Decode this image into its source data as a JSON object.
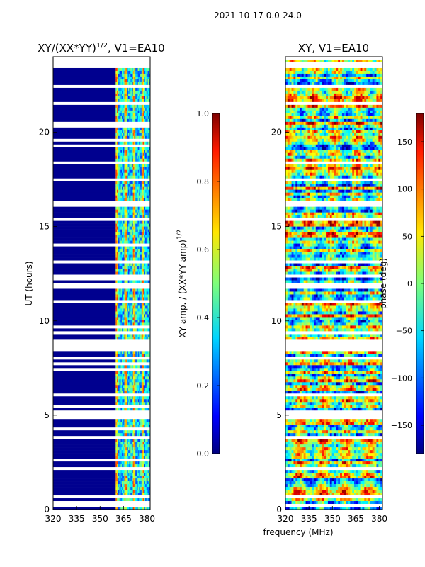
{
  "suptitle": "2021-10-17 0.0-24.0",
  "xlabel": "frequency (MHz)",
  "chart_data": [
    {
      "type": "heatmap",
      "title": "XY/(XX*YY)",
      "title_power": "1/2",
      "title_suffix": ", V1=EA10",
      "ylabel": "UT (hours)",
      "xlim": [
        320,
        382
      ],
      "ylim": [
        0,
        24
      ],
      "xticks": [
        320,
        335,
        350,
        365,
        380
      ],
      "yticks": [
        0,
        5,
        10,
        15,
        20
      ],
      "colorbar": {
        "label": "XY amp. / (XX*YY amp)",
        "label_power": "1/2",
        "range": [
          0.0,
          1.0
        ],
        "ticks": [
          "0.0",
          "0.2",
          "0.4",
          "0.6",
          "0.8",
          "1.0"
        ]
      },
      "description_values": {
        "low_band_amp": 0.0,
        "high_band_amp_range": [
          0.3,
          0.7
        ],
        "high_band_start_mhz": 360
      }
    },
    {
      "type": "heatmap",
      "title": "XY, V1=EA10",
      "ylabel": "",
      "xlim": [
        320,
        382
      ],
      "ylim": [
        0,
        24
      ],
      "xticks": [
        320,
        335,
        350,
        365,
        380
      ],
      "yticks": [
        0,
        5,
        10,
        15,
        20
      ],
      "colorbar": {
        "label": "phase (deg)",
        "range": [
          -180,
          180
        ],
        "ticks": [
          "150",
          "100",
          "50",
          "0",
          "−50",
          "−100",
          "−150"
        ]
      }
    }
  ]
}
